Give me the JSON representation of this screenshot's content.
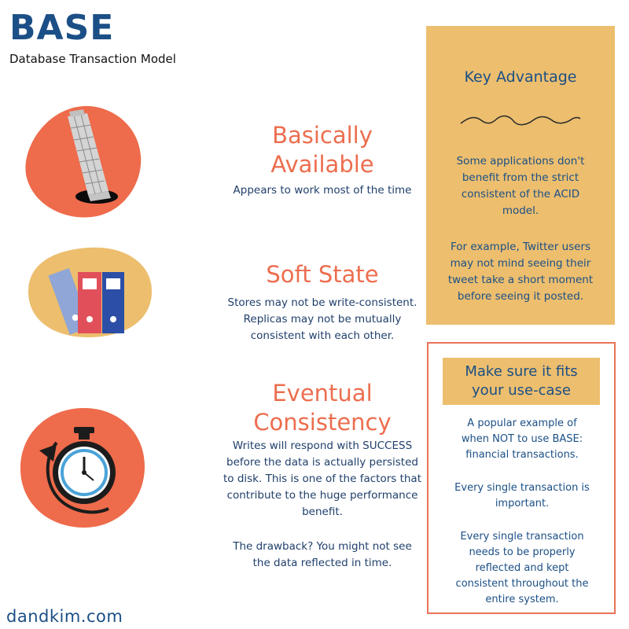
{
  "header": {
    "title": "BASE",
    "subtitle": "Database Transaction Model"
  },
  "sections": [
    {
      "heading_line1": "Basically",
      "heading_line2": "Available",
      "body": "Appears to work most of the time",
      "icon": "leaning-tower-icon"
    },
    {
      "heading": "Soft State",
      "body_lines": [
        "Stores may not be write-consistent.",
        "Replicas may not be mutually",
        "consistent with each other."
      ],
      "icon": "binders-icon"
    },
    {
      "heading_line1": "Eventual",
      "heading_line2": "Consistency",
      "body_lines": [
        "Writes will respond with SUCCESS",
        "before the data is actually persisted",
        "to disk. This is one of the factors that",
        "contribute to the huge performance",
        "benefit."
      ],
      "body2_lines": [
        "The drawback? You might not see",
        "the data reflected in time."
      ],
      "icon": "stopwatch-icon"
    }
  ],
  "key_advantage": {
    "title": "Key Advantage",
    "para1_lines": [
      "Some applications don't",
      "benefit from the strict",
      "consistent of the ACID",
      "model."
    ],
    "para2_lines": [
      "For example, Twitter users",
      "may not mind seeing their",
      "tweet take a short moment",
      "before seeing it posted."
    ]
  },
  "use_case": {
    "title_line1": "Make sure it fits",
    "title_line2": "your use-case",
    "para1_lines": [
      "A popular example of",
      "when NOT to use BASE:",
      "financial transactions."
    ],
    "para2_lines": [
      "Every single transaction is",
      "important."
    ],
    "para3_lines": [
      "Every single transaction",
      "needs to be properly",
      "reflected and kept",
      "consistent throughout the",
      "entire system."
    ]
  },
  "footer": {
    "site": "dandkim.com"
  },
  "colors": {
    "navy": "#1b4f86",
    "coral": "#ec6e4f",
    "mustard": "#ecbe6e",
    "border_red": "#e97258"
  }
}
